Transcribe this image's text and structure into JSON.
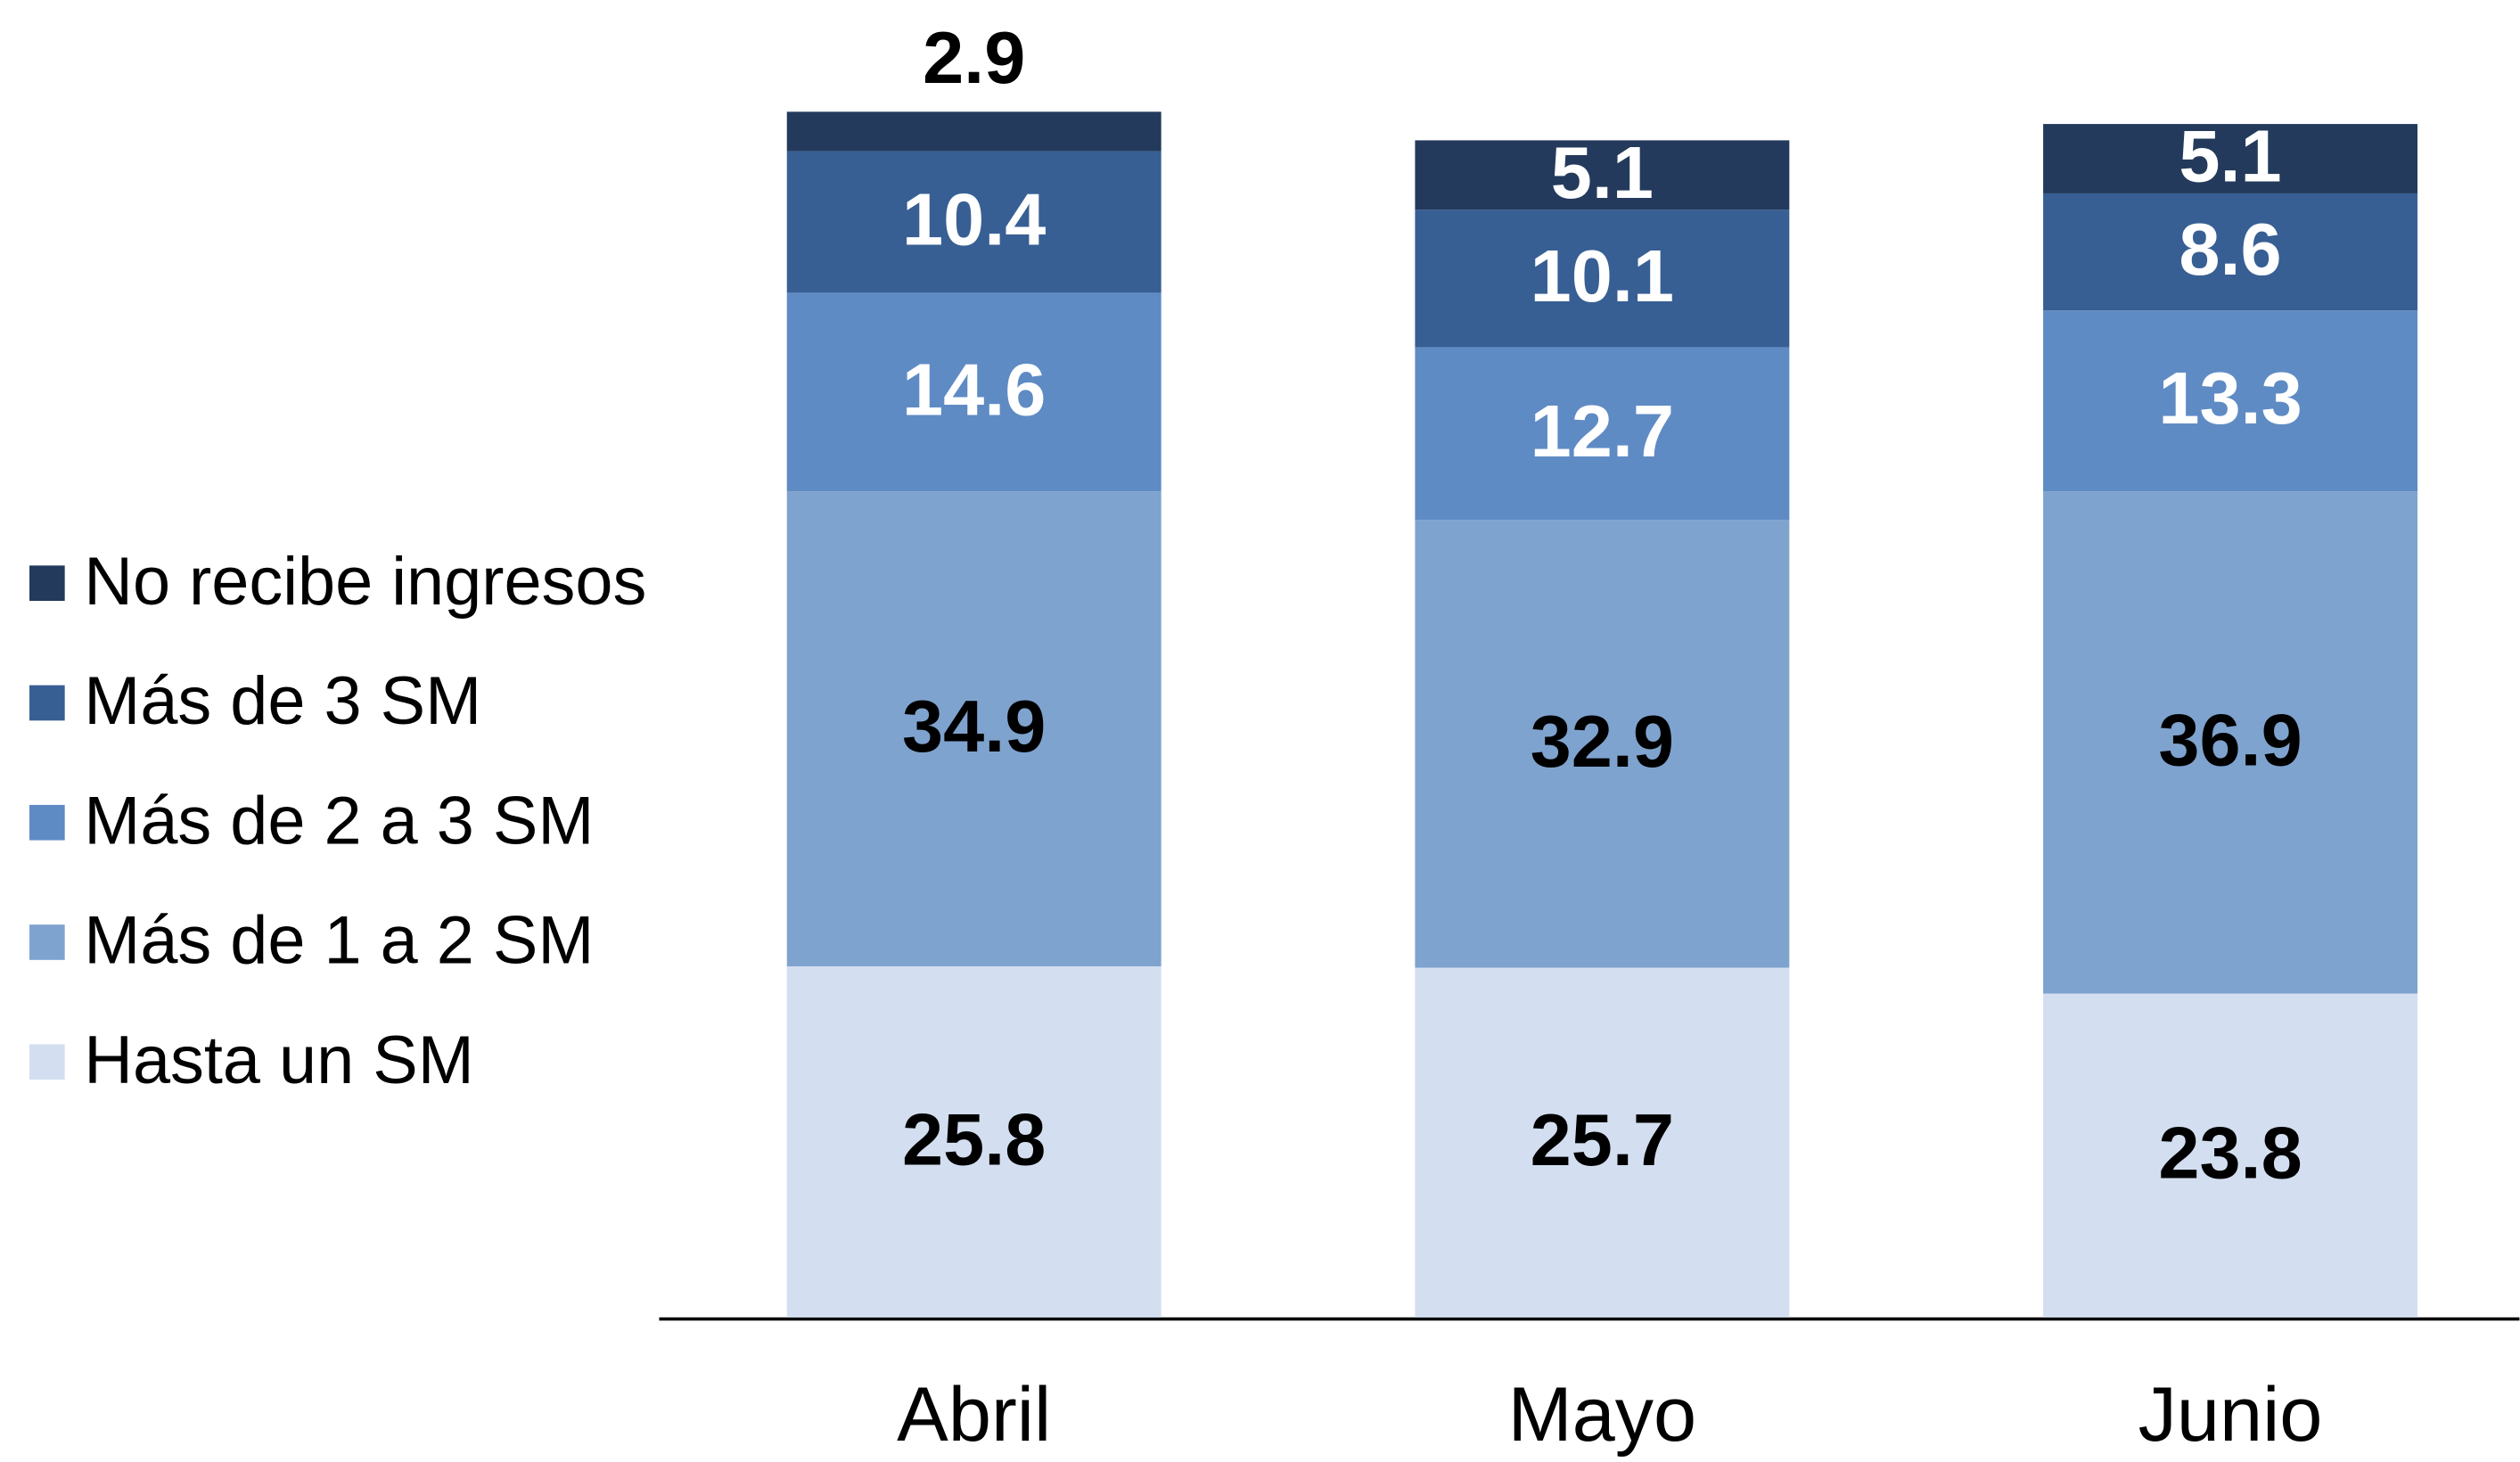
{
  "chart_data": {
    "type": "stacked_bar",
    "categories": [
      "Abril",
      "Mayo",
      "Junio"
    ],
    "series": [
      {
        "name": "Hasta un SM",
        "color": "#d3dff0",
        "values": [
          25.8,
          25.7,
          23.8
        ]
      },
      {
        "name": "Más de 1 a 2 SM",
        "color": "#7fa3cf",
        "values": [
          34.9,
          32.9,
          36.9
        ]
      },
      {
        "name": "Más de 2 a 3 SM",
        "color": "#5f8bc4",
        "values": [
          14.6,
          12.7,
          13.3
        ]
      },
      {
        "name": "Más de 3 SM",
        "color": "#375f93",
        "values": [
          10.4,
          10.1,
          8.6
        ]
      },
      {
        "name": "No recibe ingresos",
        "color": "#233a5c",
        "values": [
          2.9,
          5.1,
          5.1
        ]
      }
    ],
    "ylim": [
      0,
      100
    ],
    "legend": "left"
  }
}
